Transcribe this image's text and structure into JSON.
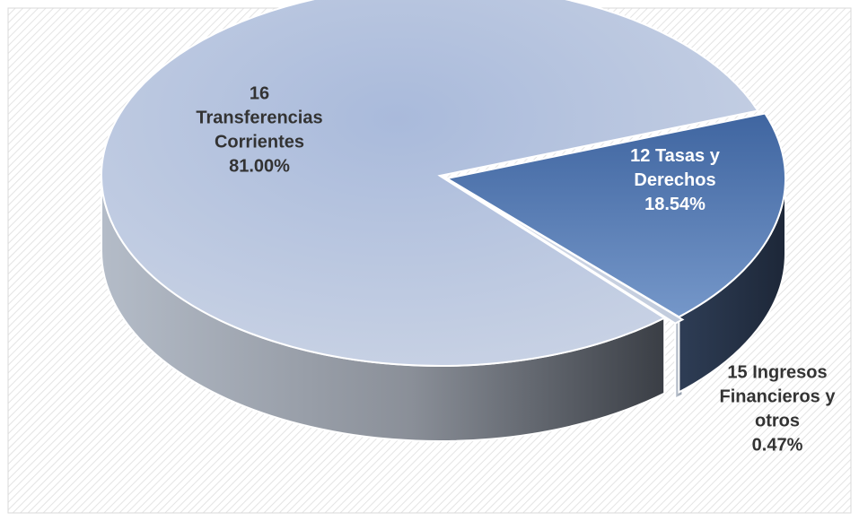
{
  "chart_data": {
    "type": "pie",
    "style": "3d-exploded",
    "categories": [
      "16 Transferencias Corrientes",
      "12 Tasas y Derechos",
      "15 Ingresos Financieros y otros"
    ],
    "values": [
      81.0,
      18.54,
      0.47
    ],
    "labels": [
      {
        "lines": [
          "16",
          "Transferencias",
          "Corrientes",
          "81.00%"
        ]
      },
      {
        "lines": [
          "12 Tasas y",
          "Derechos",
          "18.54%"
        ]
      },
      {
        "lines": [
          "15 Ingresos",
          "Financieros y",
          "otros",
          "0.47%"
        ]
      }
    ],
    "colors": [
      "#b3c2dc",
      "#5a7fb2",
      "#c9d4e6"
    ],
    "side_colors": [
      "#7e838c",
      "#27354a",
      "#a5aebc"
    ],
    "label_colors": [
      "#333333",
      "#ffffff",
      "#333333"
    ],
    "legend": "none",
    "grid": false,
    "background": "diagonal-hatch"
  }
}
